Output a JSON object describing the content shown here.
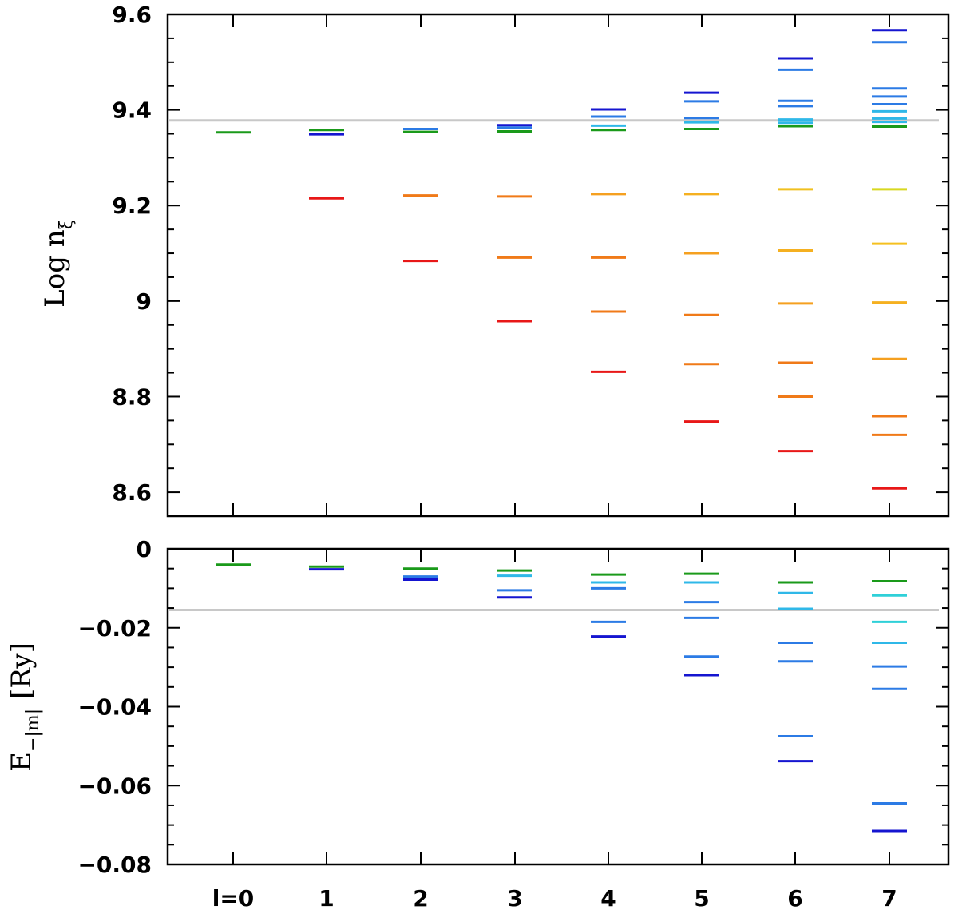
{
  "chart_data": [
    {
      "id": "top",
      "type": "scatter",
      "marker": "horizontal-dash",
      "ylabel": "Log n",
      "ylabel_sub": "ξ",
      "ylim": [
        8.55,
        9.6
      ],
      "yticks": [
        8.6,
        8.8,
        9,
        9.2,
        9.4,
        9.6
      ],
      "ytick_labels": [
        "8.6",
        "8.8",
        "9",
        "9.2",
        "9.4",
        "9.6"
      ],
      "reference_line": 9.378,
      "reference_color": "#c8c8c8",
      "levels": [
        {
          "l": 0,
          "values": [
            9.353
          ],
          "colors": [
            "#1a9a1a"
          ]
        },
        {
          "l": 1,
          "values": [
            9.358,
            9.349,
            9.215
          ],
          "colors": [
            "#1a9a1a",
            "#1515d0",
            "#e81818"
          ]
        },
        {
          "l": 2,
          "values": [
            9.36,
            9.354,
            9.221,
            9.084
          ],
          "colors": [
            "#2c7be5",
            "#1a9a1a",
            "#f07a18",
            "#e81818"
          ]
        },
        {
          "l": 3,
          "values": [
            9.368,
            9.363,
            9.355,
            9.219,
            9.091,
            8.958
          ],
          "colors": [
            "#1515d0",
            "#2c7be5",
            "#1a9a1a",
            "#f07a18",
            "#f07a18",
            "#e81818"
          ]
        },
        {
          "l": 4,
          "values": [
            9.401,
            9.386,
            9.367,
            9.358,
            9.224,
            9.091,
            8.978,
            8.852
          ],
          "colors": [
            "#1515d0",
            "#2c7be5",
            "#2fb8e8",
            "#1a9a1a",
            "#f5a020",
            "#f07a18",
            "#f07a18",
            "#e81818"
          ]
        },
        {
          "l": 5,
          "values": [
            9.436,
            9.418,
            9.383,
            9.374,
            9.36,
            9.224,
            9.1,
            8.971,
            8.868,
            8.748
          ],
          "colors": [
            "#1515d0",
            "#2c7be5",
            "#2c7be5",
            "#2fb8e8",
            "#1a9a1a",
            "#f5b020",
            "#f5a020",
            "#f07a18",
            "#f07a18",
            "#e81818"
          ]
        },
        {
          "l": 6,
          "values": [
            9.508,
            9.484,
            9.419,
            9.408,
            9.38,
            9.373,
            9.366,
            9.234,
            9.106,
            8.995,
            8.871,
            8.8,
            8.686
          ],
          "colors": [
            "#1515d0",
            "#2c7be5",
            "#2c7be5",
            "#2c7be5",
            "#2fb8e8",
            "#2fb8e8",
            "#1a9a1a",
            "#f0c020",
            "#f5b020",
            "#f5a020",
            "#f07a18",
            "#f07a18",
            "#e81818"
          ]
        },
        {
          "l": 7,
          "values": [
            9.567,
            9.542,
            9.445,
            9.428,
            9.412,
            9.397,
            9.382,
            9.375,
            9.365,
            9.234,
            9.12,
            8.997,
            8.879,
            8.759,
            8.72,
            8.608
          ],
          "colors": [
            "#1515d0",
            "#2c7be5",
            "#2c7be5",
            "#2c7be5",
            "#2c7be5",
            "#2fb8e8",
            "#2fb8e8",
            "#2fb8e8",
            "#1a9a1a",
            "#d8d820",
            "#f5c020",
            "#f5b020",
            "#f5a020",
            "#f07a18",
            "#f07a18",
            "#e81818"
          ]
        }
      ]
    },
    {
      "id": "bottom",
      "type": "scatter",
      "marker": "horizontal-dash",
      "ylabel": "E",
      "ylabel_sub": "−|m|",
      "ylabel_unit": "[Ry]",
      "ylim": [
        -0.08,
        0.0
      ],
      "yticks": [
        -0.08,
        -0.06,
        -0.04,
        -0.02,
        0
      ],
      "ytick_labels": [
        "−0.08",
        "−0.06",
        "−0.04",
        "−0.02",
        "0"
      ],
      "reference_line": -0.0155,
      "reference_color": "#c8c8c8",
      "xtick_labels": [
        "l=0",
        "1",
        "2",
        "3",
        "4",
        "5",
        "6",
        "7"
      ],
      "levels": [
        {
          "l": 0,
          "values": [
            -0.004
          ],
          "colors": [
            "#1a9a1a"
          ]
        },
        {
          "l": 1,
          "values": [
            -0.0045,
            -0.0052
          ],
          "colors": [
            "#1a9a1a",
            "#1515d0"
          ]
        },
        {
          "l": 2,
          "values": [
            -0.005,
            -0.007,
            -0.0078
          ],
          "colors": [
            "#1a9a1a",
            "#2c7be5",
            "#1515d0"
          ]
        },
        {
          "l": 3,
          "values": [
            -0.0055,
            -0.0068,
            -0.0105,
            -0.0123
          ],
          "colors": [
            "#1a9a1a",
            "#2fb8e8",
            "#2c7be5",
            "#1515d0"
          ]
        },
        {
          "l": 4,
          "values": [
            -0.0065,
            -0.0085,
            -0.01,
            -0.0185,
            -0.0222
          ],
          "colors": [
            "#1a9a1a",
            "#2fb8e8",
            "#2c7be5",
            "#2c7be5",
            "#1515d0"
          ]
        },
        {
          "l": 5,
          "values": [
            -0.0063,
            -0.0085,
            -0.0135,
            -0.0175,
            -0.0273,
            -0.032
          ],
          "colors": [
            "#1a9a1a",
            "#2fb8e8",
            "#2c7be5",
            "#2c7be5",
            "#2c7be5",
            "#1515d0"
          ]
        },
        {
          "l": 6,
          "values": [
            -0.0085,
            -0.0112,
            -0.0152,
            -0.0238,
            -0.0285,
            -0.0475,
            -0.0538
          ],
          "colors": [
            "#1a9a1a",
            "#2fb8e8",
            "#2fb8e8",
            "#2c7be5",
            "#2c7be5",
            "#2c7be5",
            "#1515d0"
          ]
        },
        {
          "l": 7,
          "values": [
            -0.0082,
            -0.0118,
            -0.0185,
            -0.0238,
            -0.0298,
            -0.0355,
            -0.0645,
            -0.0715
          ],
          "colors": [
            "#1a9a1a",
            "#2fd0d8",
            "#2fd0d8",
            "#2fb8e8",
            "#2c7be5",
            "#2c7be5",
            "#2c7be5",
            "#1515d0"
          ]
        }
      ]
    }
  ]
}
